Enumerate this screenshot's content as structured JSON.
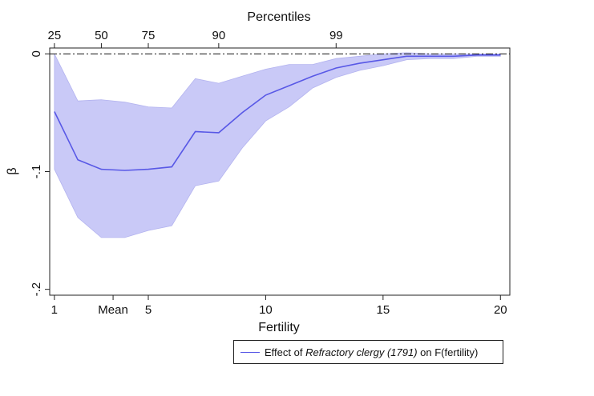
{
  "chart_data": {
    "type": "line",
    "title": "",
    "xlabel": "Fertility",
    "ylabel": "β",
    "x2label": "Percentiles",
    "xlim": [
      0.8,
      20.4
    ],
    "ylim": [
      -0.205,
      0.005
    ],
    "x_ticks": [
      {
        "value": 1,
        "label": "1"
      },
      {
        "value": 3.5,
        "label": "Mean"
      },
      {
        "value": 5,
        "label": "5"
      },
      {
        "value": 10,
        "label": "10"
      },
      {
        "value": 15,
        "label": "15"
      },
      {
        "value": 20,
        "label": "20"
      }
    ],
    "top_ticks": [
      {
        "value": 1,
        "label": "25"
      },
      {
        "value": 3,
        "label": "50"
      },
      {
        "value": 5,
        "label": "75"
      },
      {
        "value": 8,
        "label": "90"
      },
      {
        "value": 13,
        "label": "99"
      }
    ],
    "y_ticks": [
      {
        "value": 0,
        "label": "0"
      },
      {
        "value": -0.1,
        "label": "-.1"
      },
      {
        "value": -0.2,
        "label": "-.2"
      }
    ],
    "reference_line": 0,
    "grid": false,
    "legend_position": "bottom-right",
    "color": "#5858e6",
    "band_color": "#c9c9f7",
    "series": [
      {
        "name": "Effect of Refractory clergy (1791) on F(fertility)",
        "name_parts": [
          "Effect of ",
          "Refractory clergy (1791)",
          " on F(fertility)"
        ],
        "x": [
          1,
          2,
          3,
          4,
          5,
          6,
          7,
          8,
          9,
          10,
          11,
          12,
          13,
          14,
          15,
          16,
          17,
          18,
          19,
          20
        ],
        "values": [
          -0.049,
          -0.09,
          -0.098,
          -0.099,
          -0.098,
          -0.096,
          -0.066,
          -0.067,
          -0.05,
          -0.035,
          -0.027,
          -0.019,
          -0.012,
          -0.008,
          -0.005,
          -0.002,
          -0.002,
          -0.002,
          -0.001,
          -0.001
        ],
        "lower": [
          -0.098,
          -0.139,
          -0.156,
          -0.156,
          -0.15,
          -0.146,
          -0.112,
          -0.108,
          -0.08,
          -0.057,
          -0.045,
          -0.029,
          -0.02,
          -0.014,
          -0.01,
          -0.005,
          -0.004,
          -0.004,
          -0.002,
          -0.002
        ],
        "upper": [
          0.0,
          -0.04,
          -0.039,
          -0.041,
          -0.045,
          -0.046,
          -0.021,
          -0.025,
          -0.019,
          -0.013,
          -0.009,
          -0.009,
          -0.004,
          -0.002,
          0.0,
          0.001,
          0.0,
          0.0,
          0.0,
          0.0
        ]
      }
    ]
  }
}
